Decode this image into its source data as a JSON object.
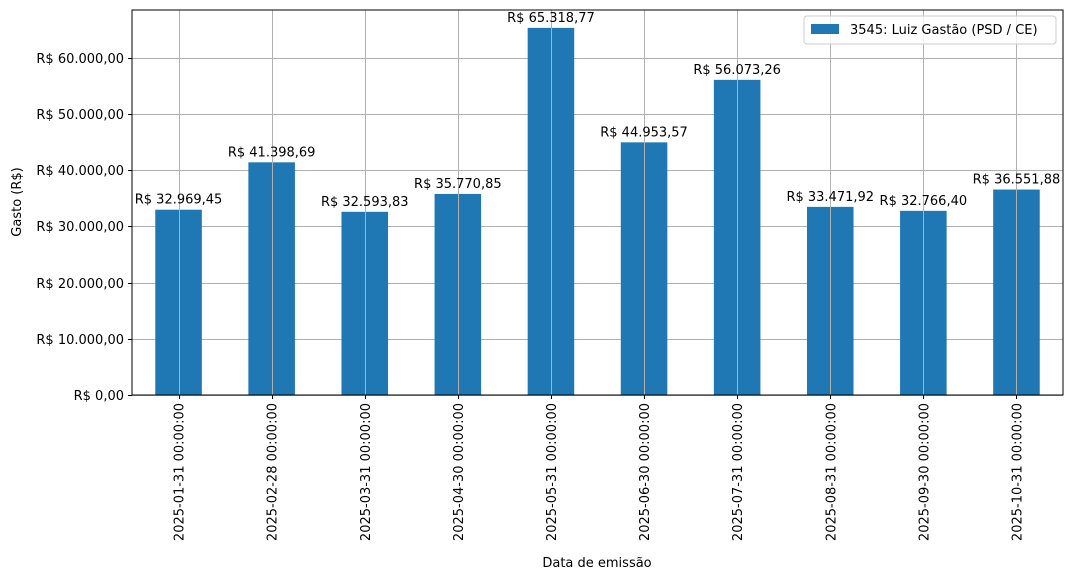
{
  "chart_data": {
    "type": "bar",
    "title": "",
    "xlabel": "Data de emissão",
    "ylabel": "Gasto (R$)",
    "ylim": [
      0,
      68500
    ],
    "grid": true,
    "legend_position": "upper right",
    "categories": [
      "2025-01-31 00:00:00",
      "2025-02-28 00:00:00",
      "2025-03-31 00:00:00",
      "2025-04-30 00:00:00",
      "2025-05-31 00:00:00",
      "2025-06-30 00:00:00",
      "2025-07-31 00:00:00",
      "2025-08-31 00:00:00",
      "2025-09-30 00:00:00",
      "2025-10-31 00:00:00"
    ],
    "series": [
      {
        "name": "3545: Luiz Gastão (PSD / CE)",
        "color": "#1f77b4",
        "values": [
          32969.45,
          41398.69,
          32593.83,
          35770.85,
          65318.77,
          44953.57,
          56073.26,
          33471.92,
          32766.4,
          36551.88
        ]
      }
    ],
    "bar_labels": [
      "R$ 32.969,45",
      "R$ 41.398,69",
      "R$ 32.593,83",
      "R$ 35.770,85",
      "R$ 65.318,77",
      "R$ 44.953,57",
      "R$ 56.073,26",
      "R$ 33.471,92",
      "R$ 32.766,40",
      "R$ 36.551,88"
    ],
    "yticks": [
      0,
      10000,
      20000,
      30000,
      40000,
      50000,
      60000
    ],
    "ytick_labels": [
      "R$ 0,00",
      "R$ 10.000,00",
      "R$ 20.000,00",
      "R$ 30.000,00",
      "R$ 40.000,00",
      "R$ 50.000,00",
      "R$ 60.000,00"
    ]
  },
  "colors": {
    "bar": "#1f77b4",
    "grid": "#b0b0b0",
    "axis": "#000000",
    "legend_border": "#cccccc"
  }
}
